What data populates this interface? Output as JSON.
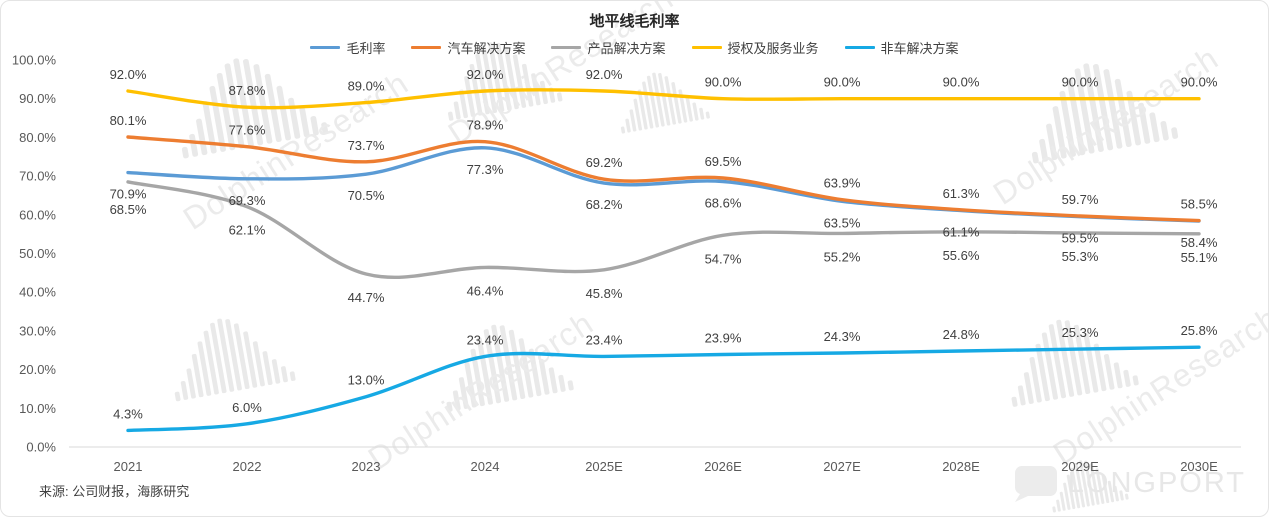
{
  "title": "地平线毛利率",
  "source": "来源: 公司财报，海豚研究",
  "watermark": {
    "text": "DolphinResearch"
  },
  "brand": {
    "name": "LONGPORT"
  },
  "chart_data": {
    "type": "line",
    "title": "地平线毛利率",
    "x": [
      "2021",
      "2022",
      "2023",
      "2024",
      "2025E",
      "2026E",
      "2027E",
      "2028E",
      "2029E",
      "2030E"
    ],
    "series": [
      {
        "name": "毛利率",
        "color": "#5B9BD5",
        "label_side": "below",
        "values": [
          70.9,
          69.3,
          70.5,
          77.3,
          68.2,
          68.6,
          63.5,
          61.1,
          59.5,
          58.4
        ]
      },
      {
        "name": "汽车解决方案",
        "color": "#ED7D31",
        "label_side": "above",
        "values": [
          80.1,
          77.6,
          73.7,
          78.9,
          69.2,
          69.5,
          63.9,
          61.3,
          59.7,
          58.5
        ]
      },
      {
        "name": "产品解决方案",
        "color": "#A6A6A6",
        "label_side": "below",
        "values": [
          68.5,
          62.1,
          44.7,
          46.4,
          45.8,
          54.7,
          55.2,
          55.6,
          55.3,
          55.1
        ]
      },
      {
        "name": "授权及服务业务",
        "color": "#FFC000",
        "label_side": "above",
        "values": [
          92.0,
          87.8,
          89.0,
          92.0,
          92.0,
          90.0,
          90.0,
          90.0,
          90.0,
          90.0
        ]
      },
      {
        "name": "非车解决方案",
        "color": "#16A9E4",
        "label_side": "above",
        "values": [
          4.3,
          6.0,
          13.0,
          23.4,
          23.4,
          23.9,
          24.3,
          24.8,
          25.3,
          25.8
        ]
      }
    ],
    "ylim": [
      0,
      100
    ],
    "yticks": [
      "100.0%",
      "90.0%",
      "80.0%",
      "70.0%",
      "60.0%",
      "50.0%",
      "40.0%",
      "30.0%",
      "20.0%",
      "10.0%",
      "0.0%"
    ],
    "grid": false,
    "legend_position": "top",
    "label_format": "one-decimal-percent"
  }
}
